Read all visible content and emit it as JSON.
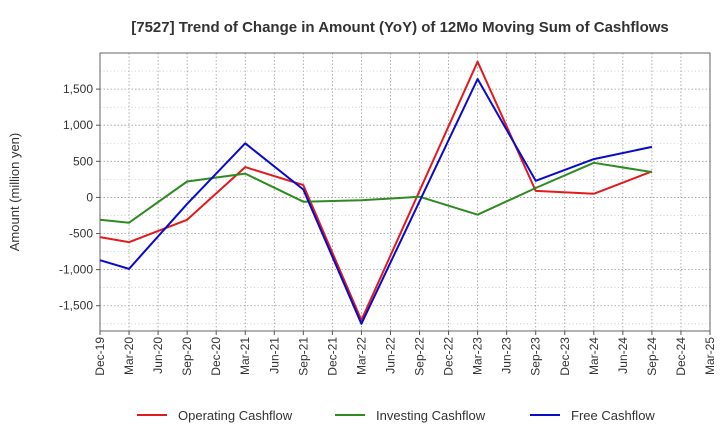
{
  "chart_data": {
    "type": "line",
    "title": "[7527]  Trend of Change in Amount (YoY) of 12Mo Moving Sum of Cashflows",
    "xlabel": "",
    "ylabel": "Amount (million yen)",
    "ylim": [
      -1850,
      2000
    ],
    "yticks": [
      -1500,
      -1000,
      -500,
      0,
      500,
      1000,
      1500
    ],
    "ytick_labels": [
      "-1,500",
      "-1,000",
      "-500",
      "0",
      "500",
      "1,000",
      "1,500"
    ],
    "categories": [
      "Dec-19",
      "Mar-20",
      "Jun-20",
      "Sep-20",
      "Dec-20",
      "Mar-21",
      "Jun-21",
      "Sep-21",
      "Dec-21",
      "Mar-22",
      "Jun-22",
      "Sep-22",
      "Dec-22",
      "Mar-23",
      "Jun-23",
      "Sep-23",
      "Dec-23",
      "Mar-24",
      "Jun-24",
      "Sep-24",
      "Dec-24",
      "Mar-25"
    ],
    "grid": true,
    "legend_position": "bottom",
    "series": [
      {
        "name": "Operating Cashflow",
        "color": "#e31a1c",
        "values": [
          -550,
          -620,
          null,
          -310,
          null,
          420,
          null,
          170,
          null,
          -1700,
          null,
          null,
          null,
          1880,
          null,
          90,
          null,
          50,
          null,
          360,
          null,
          null
        ]
      },
      {
        "name": "Investing Cashflow",
        "color": "#2e8b22",
        "values": [
          -310,
          -350,
          null,
          220,
          null,
          330,
          null,
          -60,
          null,
          -40,
          null,
          10,
          null,
          -240,
          null,
          130,
          null,
          480,
          null,
          350,
          null,
          null
        ]
      },
      {
        "name": "Free Cashflow",
        "color": "#0a0acd",
        "values": [
          -870,
          -990,
          null,
          -90,
          null,
          750,
          null,
          110,
          null,
          -1750,
          null,
          null,
          null,
          1640,
          null,
          230,
          null,
          530,
          null,
          700,
          null,
          null
        ]
      }
    ]
  }
}
